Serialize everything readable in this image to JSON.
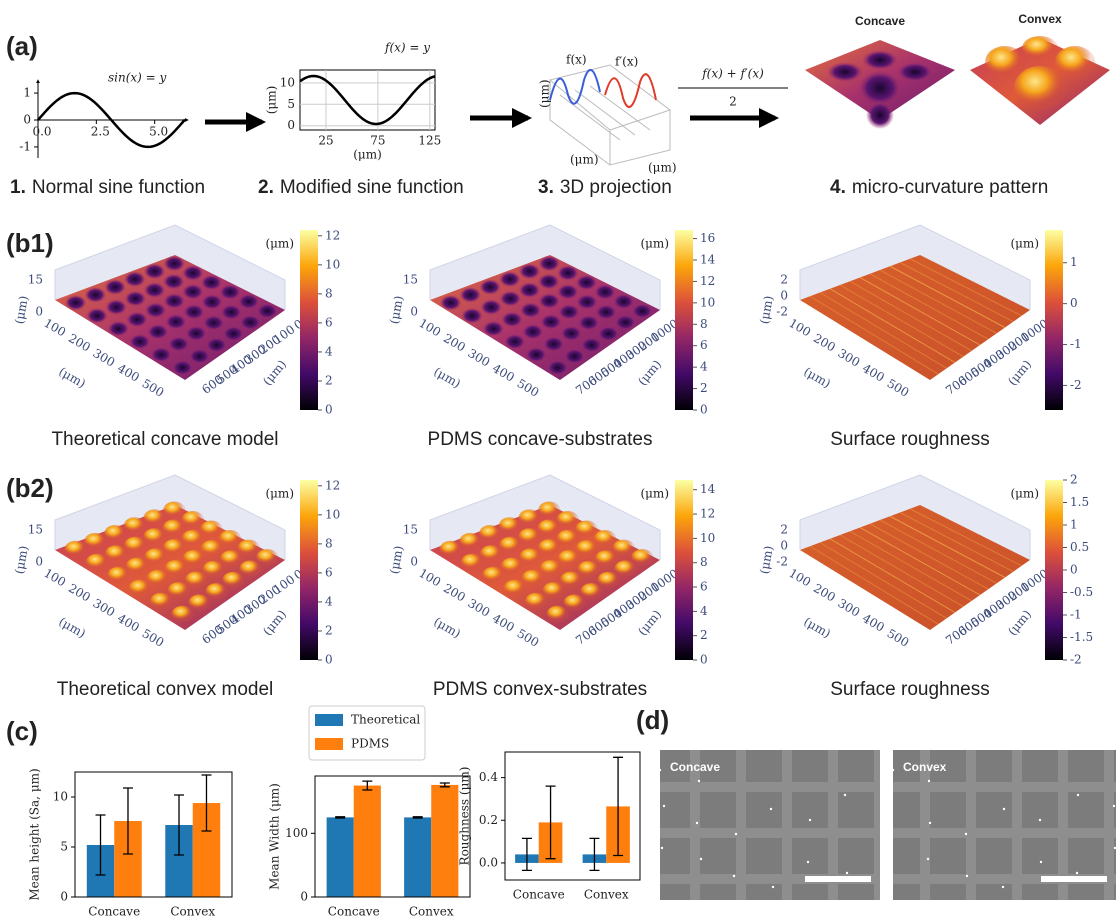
{
  "panel_labels": [
    "(a)",
    "(b1)",
    "(b2)",
    "(c)",
    "(d)"
  ],
  "panel_a": {
    "sine": {
      "equation": "sin(x) = y",
      "xlim": [
        0,
        6.3
      ],
      "ylim": [
        -1.3,
        1.3
      ],
      "xticks": [
        {
          "value": 0,
          "label": "0.0"
        },
        2.5,
        {
          "value": 5,
          "label": "5.0"
        }
      ],
      "yticks": [
        -1,
        0,
        1
      ]
    },
    "modified": {
      "equation": "f(x) = y",
      "xlim": [
        0,
        130
      ],
      "ylim": [
        -1,
        13
      ],
      "xticks": [
        25,
        75,
        125
      ],
      "yticks": [
        0,
        5,
        10
      ],
      "xlabel": "(μm)",
      "ylabel": "(μm)"
    },
    "projection": {
      "labels": [
        "f(x)",
        "f′(x)"
      ],
      "axis_label": "(μm)"
    },
    "formula": {
      "numerator": "f(x) + f′(x)",
      "denominator": "2"
    },
    "pattern_titles": [
      "Concave",
      "Convex"
    ],
    "steps": [
      {
        "number": "1.",
        "text": "Normal sine function"
      },
      {
        "number": "2.",
        "text": "Modified sine function"
      },
      {
        "number": "3.",
        "text": "3D projection"
      },
      {
        "number": "4.",
        "text": "micro-curvature pattern"
      }
    ]
  },
  "panel_b": [
    {
      "style": "concave",
      "caption": "Theoretical concave model",
      "z_ticks": [
        15,
        0
      ],
      "z_label": "(μm)",
      "axis1_ticks": [
        100,
        200,
        300,
        400,
        500
      ],
      "axis1_label": "(μm)",
      "axis2_ticks": [
        0,
        100,
        200,
        300,
        400,
        500,
        600
      ],
      "axis2_label": "(μm)",
      "colorbar_unit": "(μm)",
      "clim": [
        0,
        12.4
      ],
      "colorbar_ticks": [
        0,
        2,
        4,
        6,
        8,
        10,
        12
      ]
    },
    {
      "style": "concave",
      "caption": "PDMS concave-substrates",
      "z_ticks": [
        15,
        0
      ],
      "z_label": "(μm)",
      "axis1_ticks": [
        100,
        200,
        300,
        400,
        500
      ],
      "axis1_label": "(μm)",
      "axis2_ticks": [
        0,
        100,
        200,
        300,
        400,
        500,
        600,
        700
      ],
      "axis2_label": "(μm)",
      "colorbar_unit": "(μm)",
      "clim": [
        0,
        16.8
      ],
      "colorbar_ticks": [
        0,
        2,
        4,
        6,
        8,
        10,
        12,
        14,
        16
      ]
    },
    {
      "style": "rough",
      "caption": "Surface roughness",
      "z_ticks": [
        2,
        0,
        -2
      ],
      "z_label": "(μm)",
      "axis1_ticks": [
        100,
        200,
        300,
        400,
        500
      ],
      "axis1_label": "(μm)",
      "axis2_ticks": [
        0,
        100,
        200,
        300,
        400,
        500,
        600,
        700
      ],
      "axis2_label": "(μm)",
      "colorbar_unit": "(μm)",
      "clim": [
        -2.6,
        1.8
      ],
      "colorbar_ticks": [
        -2,
        -1,
        0,
        1
      ]
    },
    {
      "style": "convex",
      "caption": "Theoretical convex model",
      "z_ticks": [
        15,
        0
      ],
      "z_label": "(μm)",
      "axis1_ticks": [
        100,
        200,
        300,
        400,
        500
      ],
      "axis1_label": "(μm)",
      "axis2_ticks": [
        0,
        100,
        200,
        300,
        400,
        500,
        600
      ],
      "axis2_label": "(μm)",
      "colorbar_unit": "(μm)",
      "clim": [
        0,
        12.4
      ],
      "colorbar_ticks": [
        0,
        2,
        4,
        6,
        8,
        10,
        12
      ]
    },
    {
      "style": "convex",
      "caption": "PDMS convex-substrates",
      "z_ticks": [
        15,
        0
      ],
      "z_label": "(μm)",
      "axis1_ticks": [
        100,
        200,
        300,
        400,
        500
      ],
      "axis1_label": "(μm)",
      "axis2_ticks": [
        0,
        100,
        200,
        300,
        400,
        500,
        600,
        700
      ],
      "axis2_label": "(μm)",
      "colorbar_unit": "(μm)",
      "clim": [
        0,
        14.8
      ],
      "colorbar_ticks": [
        0,
        2,
        4,
        6,
        8,
        10,
        12,
        14
      ]
    },
    {
      "style": "rough",
      "caption": "Surface roughness",
      "z_ticks": [
        2,
        0,
        -2
      ],
      "z_label": "(μm)",
      "axis1_ticks": [
        100,
        200,
        300,
        400,
        500
      ],
      "axis1_label": "(μm)",
      "axis2_ticks": [
        0,
        100,
        200,
        300,
        400,
        500,
        600,
        700
      ],
      "axis2_label": "(μm)",
      "colorbar_unit": "(μm)",
      "clim": [
        -2,
        2
      ],
      "colorbar_ticks": [
        -2,
        -1.5,
        -1,
        -0.5,
        0,
        0.5,
        1,
        1.5,
        2
      ]
    }
  ],
  "chart_data": [
    {
      "type": "bar",
      "ylabel": "Mean height (Sa, μm)",
      "categories": [
        "Concave",
        "Convex"
      ],
      "ylim": [
        0,
        12.5
      ],
      "yticks": [
        0,
        5,
        10
      ],
      "series": [
        {
          "color": "#1f77b4",
          "values": [
            5.2,
            7.2
          ],
          "errors": [
            3,
            3
          ]
        },
        {
          "color": "#ff7f0e",
          "values": [
            7.6,
            9.4
          ],
          "errors": [
            3.3,
            2.8
          ]
        }
      ]
    },
    {
      "type": "bar",
      "ylabel": "Mean Width (μm)",
      "categories": [
        "Concave",
        "Convex"
      ],
      "ylim": [
        0,
        190
      ],
      "yticks": [
        0,
        100
      ],
      "legend": "top",
      "series": [
        {
          "name": "Theoretical",
          "color": "#1f77b4",
          "values": [
            125,
            125
          ],
          "errors": [
            1,
            1
          ]
        },
        {
          "name": "PDMS",
          "color": "#ff7f0e",
          "values": [
            175,
            176
          ],
          "errors": [
            7,
            3
          ]
        }
      ]
    },
    {
      "type": "bar",
      "ylabel": "Roughness (μm)",
      "categories": [
        "Concave",
        "Convex"
      ],
      "ylim": [
        -0.08,
        0.52
      ],
      "yticks": [
        {
          "value": 0,
          "label": "0.0"
        },
        0.2,
        0.4
      ],
      "series": [
        {
          "color": "#1f77b4",
          "values": [
            0.04,
            0.04
          ],
          "errors": [
            0.075,
            0.075
          ]
        },
        {
          "color": "#ff7f0e",
          "values": [
            0.19,
            0.265
          ],
          "errors": [
            0.17,
            0.23
          ]
        }
      ]
    }
  ],
  "panel_d": {
    "labels": [
      "Concave",
      "Convex"
    ]
  }
}
